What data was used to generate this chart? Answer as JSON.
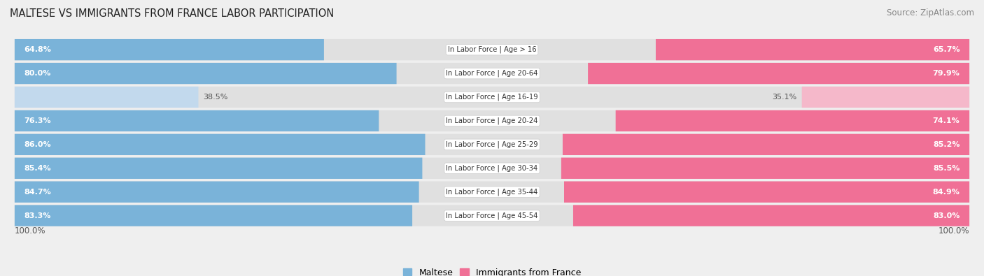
{
  "title": "MALTESE VS IMMIGRANTS FROM FRANCE LABOR PARTICIPATION",
  "source": "Source: ZipAtlas.com",
  "categories": [
    "In Labor Force | Age > 16",
    "In Labor Force | Age 20-64",
    "In Labor Force | Age 16-19",
    "In Labor Force | Age 20-24",
    "In Labor Force | Age 25-29",
    "In Labor Force | Age 30-34",
    "In Labor Force | Age 35-44",
    "In Labor Force | Age 45-54"
  ],
  "maltese_values": [
    64.8,
    80.0,
    38.5,
    76.3,
    86.0,
    85.4,
    84.7,
    83.3
  ],
  "france_values": [
    65.7,
    79.9,
    35.1,
    74.1,
    85.2,
    85.5,
    84.9,
    83.0
  ],
  "maltese_color": "#7ab3d9",
  "maltese_color_light": "#c2d9ed",
  "france_color": "#f07096",
  "france_color_light": "#f5b8ca",
  "bg_color": "#efefef",
  "row_bg_color": "#e0e0e0",
  "max_val": 100.0,
  "x_left_label": "100.0%",
  "x_right_label": "100.0%",
  "legend_maltese": "Maltese",
  "legend_france": "Immigrants from France"
}
